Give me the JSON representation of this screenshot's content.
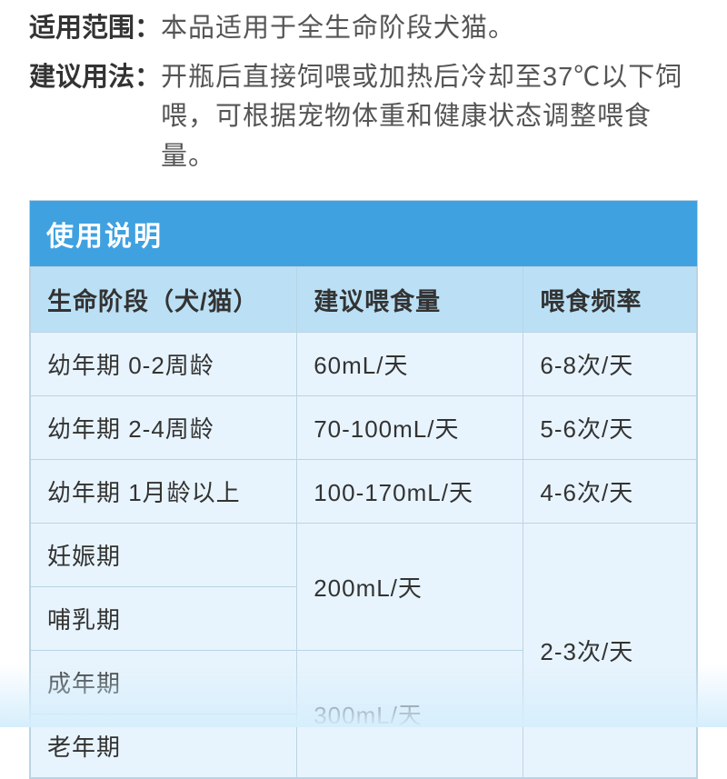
{
  "sections": {
    "scope": {
      "label": "适用范围",
      "text": "本品适用于全生命阶段犬猫。"
    },
    "usage": {
      "label": "建议用法",
      "text": "开瓶后直接饲喂或加热后冷却至37℃以下饲喂，可根据宠物体重和健康状态调整喂食量。"
    }
  },
  "table": {
    "title": "使用说明",
    "columns": {
      "stage": "生命阶段（犬/猫）",
      "amount": "建议喂食量",
      "freq": "喂食频率"
    },
    "rows": {
      "r0_stage": "幼年期 0-2周龄",
      "r0_amount": "60mL/天",
      "r0_freq": "6-8次/天",
      "r1_stage": "幼年期 2-4周龄",
      "r1_amount": "70-100mL/天",
      "r1_freq": "5-6次/天",
      "r2_stage": "幼年期 1月龄以上",
      "r2_amount": "100-170mL/天",
      "r2_freq": "4-6次/天",
      "r3_stage": "妊娠期",
      "r4_stage": "哺乳期",
      "g1_amount": "200mL/天",
      "r5_stage": "成年期",
      "r6_stage": "老年期",
      "g2_amount": "300mL/天",
      "g_freq": "2-3次/天"
    }
  },
  "colors": {
    "header_bg": "#3fa1e0",
    "head_row_bg": "#bbe0f5",
    "cell_bg": "#e8f4fd",
    "border": "#b9d4e4"
  }
}
